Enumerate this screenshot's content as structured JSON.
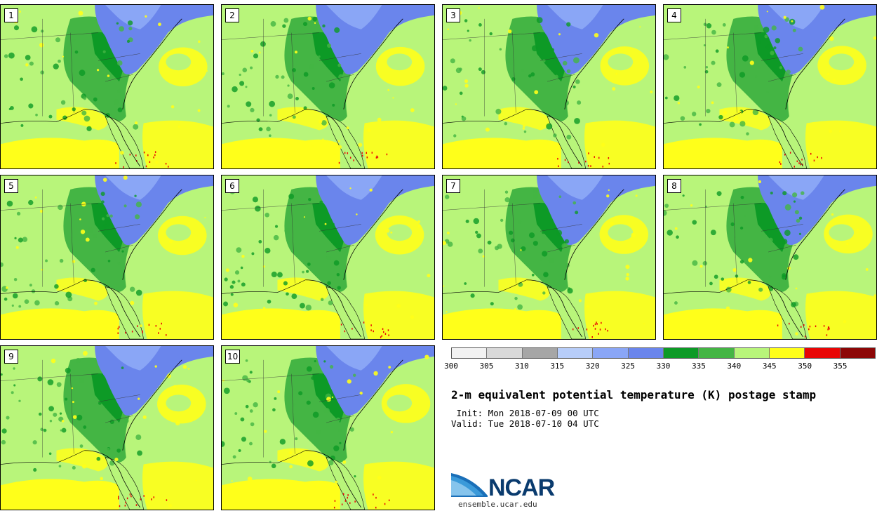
{
  "title": "2-m equivalent potential temperature (K) postage stamp",
  "init": " Init: Mon 2018-07-09 00 UTC",
  "valid": "Valid: Tue 2018-07-10 04 UTC",
  "members": [
    "1",
    "2",
    "3",
    "4",
    "5",
    "6",
    "7",
    "8",
    "9",
    "10"
  ],
  "legend": {
    "ticks": [
      "300",
      "305",
      "310",
      "315",
      "320",
      "325",
      "330",
      "335",
      "340",
      "345",
      "350",
      "355"
    ],
    "colors": [
      "#f2f2f2",
      "#d9d9d9",
      "#a6a6a6",
      "#b7cdf9",
      "#8aa6f6",
      "#6a85ec",
      "#0d9a26",
      "#44b544",
      "#b8f57a",
      "#ffff1a",
      "#e80505",
      "#8c0606"
    ]
  },
  "logo": {
    "text": "NCAR",
    "url": "ensemble.ucar.edu"
  }
}
